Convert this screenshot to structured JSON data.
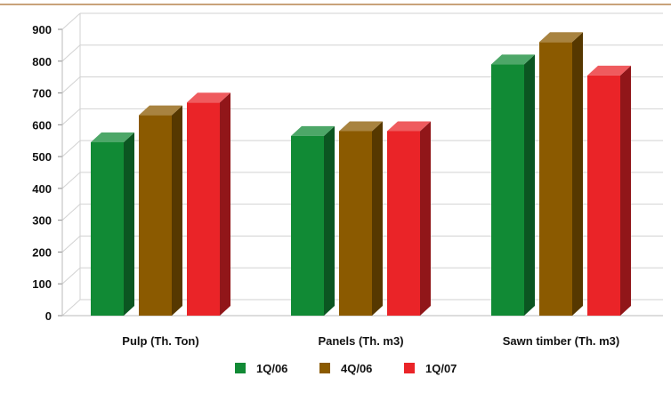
{
  "chart_data": {
    "type": "bar",
    "categories": [
      "Pulp (Th. Ton)",
      "Panels (Th. m3)",
      "Sawn timber (Th. m3)"
    ],
    "series": [
      {
        "name": "1Q/06",
        "color": "#118a35",
        "values": [
          545,
          565,
          790
        ]
      },
      {
        "name": "4Q/06",
        "color": "#8b5a00",
        "values": [
          630,
          580,
          860
        ]
      },
      {
        "name": "1Q/07",
        "color": "#ea2428",
        "values": [
          670,
          580,
          755
        ]
      }
    ],
    "title": "",
    "xlabel": "",
    "ylabel": "",
    "ylim": [
      0,
      900
    ],
    "yticks": [
      "0",
      "100",
      "200",
      "300",
      "400",
      "500",
      "600",
      "700",
      "800",
      "900"
    ],
    "grid": true,
    "legend": "bottom-center",
    "style": "3d-bars",
    "top_rule_color": "#c9a27a"
  }
}
